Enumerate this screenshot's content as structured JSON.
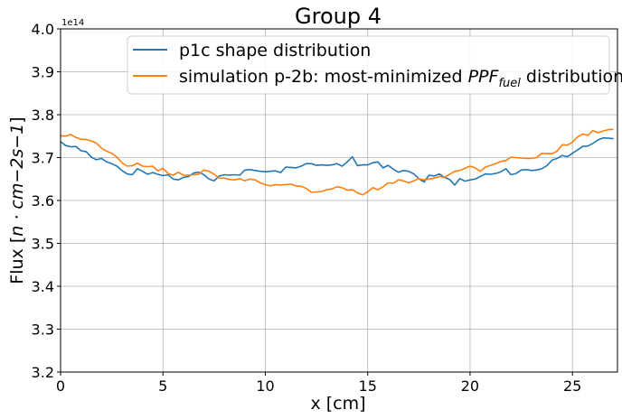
{
  "chart_data": {
    "type": "line",
    "title": "Group 4",
    "xlabel": "x [cm]",
    "ylabel_prefix": "Flux [",
    "ylabel_math": "n · cm−2s−1",
    "ylabel_suffix": "]",
    "y_offset_label": "1e14",
    "xlim": [
      0,
      27.2
    ],
    "ylim": [
      3.2,
      4.0
    ],
    "x_ticks": [
      0,
      5,
      10,
      15,
      20,
      25
    ],
    "y_ticks": [
      3.2,
      3.3,
      3.4,
      3.5,
      3.6,
      3.7,
      3.8,
      3.9,
      4.0
    ],
    "grid": true,
    "legend_position": "top-right",
    "series": [
      {
        "name": "p1c shape distribution",
        "color": "#1f77b4",
        "x": [
          0.0,
          0.25,
          0.5,
          0.75,
          1.0,
          1.25,
          1.5,
          1.75,
          2.0,
          2.25,
          2.5,
          2.75,
          3.0,
          3.25,
          3.5,
          3.75,
          4.0,
          4.25,
          4.5,
          4.75,
          5.0,
          5.25,
          5.5,
          5.75,
          6.0,
          6.25,
          6.5,
          6.75,
          7.0,
          7.25,
          7.5,
          7.75,
          8.0,
          8.25,
          8.5,
          8.75,
          9.0,
          9.25,
          9.5,
          9.75,
          10.0,
          10.25,
          10.5,
          10.75,
          11.0,
          11.25,
          11.5,
          11.75,
          12.0,
          12.25,
          12.5,
          12.75,
          13.0,
          13.25,
          13.5,
          13.75,
          14.0,
          14.25,
          14.5,
          14.75,
          15.0,
          15.25,
          15.5,
          15.75,
          16.0,
          16.25,
          16.5,
          16.75,
          17.0,
          17.25,
          17.5,
          17.75,
          18.0,
          18.25,
          18.5,
          18.75,
          19.0,
          19.25,
          19.5,
          19.75,
          20.0,
          20.25,
          20.5,
          20.75,
          21.0,
          21.25,
          21.5,
          21.75,
          22.0,
          22.25,
          22.5,
          22.75,
          23.0,
          23.25,
          23.5,
          23.75,
          24.0,
          24.25,
          24.5,
          24.75,
          25.0,
          25.25,
          25.5,
          25.75,
          26.0,
          26.25,
          26.5,
          26.75,
          27.0
        ],
        "y": [
          3.737,
          3.728,
          3.725,
          3.726,
          3.716,
          3.714,
          3.701,
          3.695,
          3.698,
          3.69,
          3.686,
          3.68,
          3.67,
          3.662,
          3.66,
          3.674,
          3.668,
          3.661,
          3.665,
          3.661,
          3.658,
          3.66,
          3.65,
          3.648,
          3.654,
          3.656,
          3.664,
          3.666,
          3.66,
          3.65,
          3.646,
          3.657,
          3.66,
          3.659,
          3.66,
          3.659,
          3.671,
          3.672,
          3.67,
          3.668,
          3.667,
          3.668,
          3.669,
          3.665,
          3.678,
          3.677,
          3.676,
          3.68,
          3.686,
          3.686,
          3.682,
          3.683,
          3.682,
          3.683,
          3.686,
          3.68,
          3.69,
          3.702,
          3.681,
          3.683,
          3.683,
          3.688,
          3.69,
          3.676,
          3.682,
          3.673,
          3.666,
          3.67,
          3.668,
          3.662,
          3.651,
          3.643,
          3.659,
          3.657,
          3.662,
          3.654,
          3.649,
          3.636,
          3.651,
          3.645,
          3.648,
          3.65,
          3.656,
          3.662,
          3.661,
          3.663,
          3.667,
          3.674,
          3.66,
          3.663,
          3.671,
          3.672,
          3.67,
          3.671,
          3.674,
          3.681,
          3.694,
          3.698,
          3.705,
          3.702,
          3.71,
          3.718,
          3.726,
          3.727,
          3.733,
          3.741,
          3.746,
          3.745,
          3.744
        ]
      },
      {
        "name": "simulation p-2b: most-minimized PPF_fuel distribution",
        "color": "#ff7f0e",
        "x": [
          0.0,
          0.25,
          0.5,
          0.75,
          1.0,
          1.25,
          1.5,
          1.75,
          2.0,
          2.25,
          2.5,
          2.75,
          3.0,
          3.25,
          3.5,
          3.75,
          4.0,
          4.25,
          4.5,
          4.75,
          5.0,
          5.25,
          5.5,
          5.75,
          6.0,
          6.25,
          6.5,
          6.75,
          7.0,
          7.25,
          7.5,
          7.75,
          8.0,
          8.25,
          8.5,
          8.75,
          9.0,
          9.25,
          9.5,
          9.75,
          10.0,
          10.25,
          10.5,
          10.75,
          11.0,
          11.25,
          11.5,
          11.75,
          12.0,
          12.25,
          12.5,
          12.75,
          13.0,
          13.25,
          13.5,
          13.75,
          14.0,
          14.25,
          14.5,
          14.75,
          15.0,
          15.25,
          15.5,
          15.75,
          16.0,
          16.25,
          16.5,
          16.75,
          17.0,
          17.25,
          17.5,
          17.75,
          18.0,
          18.25,
          18.5,
          18.75,
          19.0,
          19.25,
          19.5,
          19.75,
          20.0,
          20.25,
          20.5,
          20.75,
          21.0,
          21.25,
          21.5,
          21.75,
          22.0,
          22.25,
          22.5,
          22.75,
          23.0,
          23.25,
          23.5,
          23.75,
          24.0,
          24.25,
          24.5,
          24.75,
          25.0,
          25.25,
          25.5,
          25.75,
          26.0,
          26.25,
          26.5,
          26.75,
          27.0
        ],
        "y": [
          3.751,
          3.75,
          3.754,
          3.747,
          3.743,
          3.742,
          3.739,
          3.734,
          3.722,
          3.715,
          3.71,
          3.701,
          3.688,
          3.68,
          3.681,
          3.687,
          3.68,
          3.679,
          3.68,
          3.669,
          3.675,
          3.663,
          3.659,
          3.666,
          3.659,
          3.659,
          3.66,
          3.661,
          3.671,
          3.668,
          3.661,
          3.652,
          3.652,
          3.649,
          3.648,
          3.651,
          3.646,
          3.65,
          3.648,
          3.641,
          3.637,
          3.634,
          3.637,
          3.636,
          3.637,
          3.638,
          3.634,
          3.633,
          3.628,
          3.619,
          3.62,
          3.621,
          3.625,
          3.627,
          3.632,
          3.63,
          3.624,
          3.625,
          3.618,
          3.613,
          3.62,
          3.63,
          3.625,
          3.632,
          3.641,
          3.64,
          3.648,
          3.646,
          3.641,
          3.646,
          3.651,
          3.648,
          3.65,
          3.652,
          3.656,
          3.654,
          3.661,
          3.668,
          3.67,
          3.675,
          3.68,
          3.676,
          3.668,
          3.678,
          3.682,
          3.686,
          3.691,
          3.693,
          3.701,
          3.7,
          3.699,
          3.698,
          3.698,
          3.7,
          3.71,
          3.709,
          3.709,
          3.715,
          3.73,
          3.729,
          3.736,
          3.748,
          3.755,
          3.752,
          3.763,
          3.758,
          3.762,
          3.765,
          3.766
        ]
      }
    ],
    "legend": {
      "entry1": "p1c shape distribution",
      "entry2_text": "simulation p-2b: most-minimized ",
      "entry2_math": "PPF",
      "entry2_sub": "fuel",
      "entry2_suffix": " distribution"
    }
  }
}
